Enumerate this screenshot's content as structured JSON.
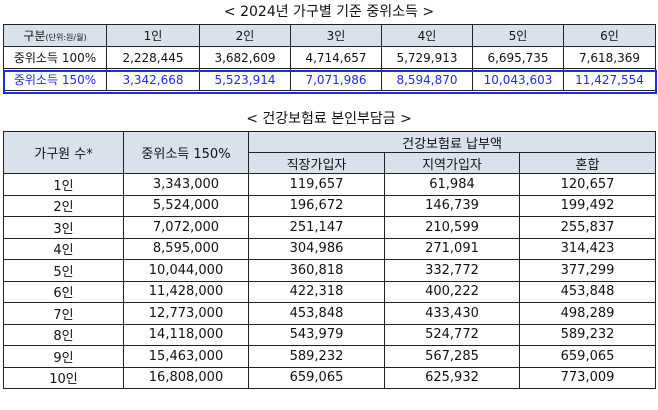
{
  "title1": "< 2024년 가구별 기준 중위소득 >",
  "table1": {
    "header_label": "구분",
    "header_unit": "(단위:원/월)",
    "columns": [
      "1인",
      "2인",
      "3인",
      "4인",
      "5인",
      "6인"
    ],
    "rows": [
      {
        "label": "중위소득 100%",
        "values": [
          "2,228,445",
          "3,682,609",
          "4,714,657",
          "5,729,913",
          "6,695,735",
          "7,618,369"
        ]
      },
      {
        "label": "중위소득 150%",
        "values": [
          "3,342,668",
          "5,523,914",
          "7,071,986",
          "8,594,870",
          "10,043,603",
          "11,427,554"
        ]
      }
    ],
    "highlight_color": "#1a2de3",
    "header_bg": "#d9e1ec"
  },
  "title2": "< 건강보험료 본인부담금 >",
  "table2": {
    "col_household": "가구원 수*",
    "col_income": "중위소득 150%",
    "col_premium_group": "건강보험료 납부액",
    "col_employee": "직장가입자",
    "col_regional": "지역가입자",
    "col_mixed": "혼합",
    "rows": [
      {
        "size": "1인",
        "income": "3,343,000",
        "employee": "119,657",
        "regional": "61,984",
        "mixed": "120,657"
      },
      {
        "size": "2인",
        "income": "5,524,000",
        "employee": "196,672",
        "regional": "146,739",
        "mixed": "199,492"
      },
      {
        "size": "3인",
        "income": "7,072,000",
        "employee": "251,147",
        "regional": "210,599",
        "mixed": "255,837"
      },
      {
        "size": "4인",
        "income": "8,595,000",
        "employee": "304,986",
        "regional": "271,091",
        "mixed": "314,423"
      },
      {
        "size": "5인",
        "income": "10,044,000",
        "employee": "360,818",
        "regional": "332,772",
        "mixed": "377,299"
      },
      {
        "size": "6인",
        "income": "11,428,000",
        "employee": "422,318",
        "regional": "400,222",
        "mixed": "453,848"
      },
      {
        "size": "7인",
        "income": "12,773,000",
        "employee": "453,848",
        "regional": "433,430",
        "mixed": "498,289"
      },
      {
        "size": "8인",
        "income": "14,118,000",
        "employee": "543,979",
        "regional": "524,772",
        "mixed": "589,232"
      },
      {
        "size": "9인",
        "income": "15,463,000",
        "employee": "589,232",
        "regional": "567,285",
        "mixed": "659,065"
      },
      {
        "size": "10인",
        "income": "16,808,000",
        "employee": "659,065",
        "regional": "625,932",
        "mixed": "773,009"
      }
    ]
  }
}
